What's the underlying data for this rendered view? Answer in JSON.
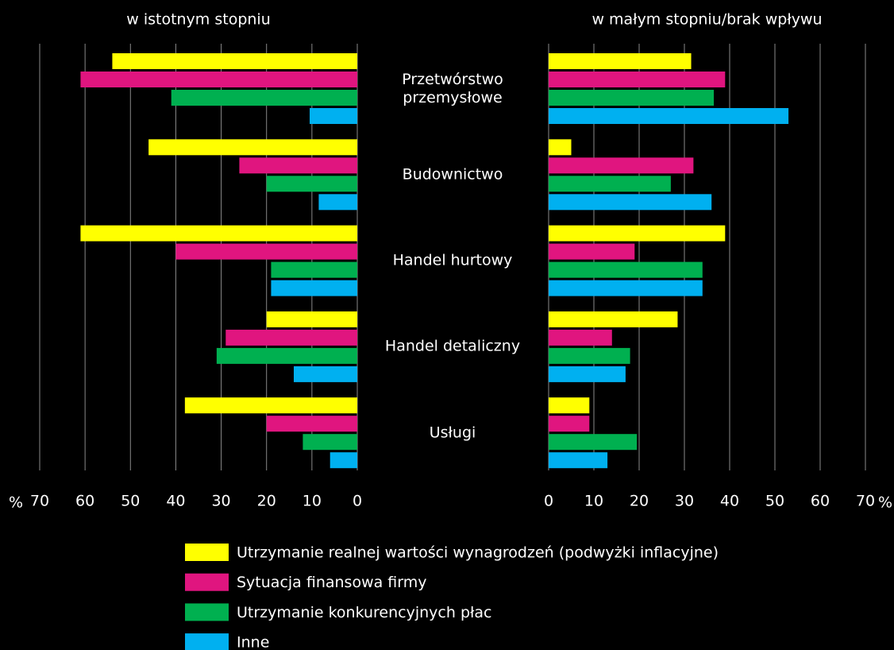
{
  "chart_data": {
    "type": "bar",
    "categories": [
      "Przetwórstwo przemysłowe",
      "Budownictwo",
      "Handel hurtowy",
      "Handel detaliczny",
      "Usługi"
    ],
    "series": [
      {
        "name": "Utrzymanie realnej wartości wynagrodzeń (podwyżki inflacyjne)",
        "color": "#ffff00"
      },
      {
        "name": "Sytuacja finansowa firmy",
        "color": "#e0157f"
      },
      {
        "name": "Utrzymanie konkurencyjnych płac",
        "color": "#00b050"
      },
      {
        "name": "Inne",
        "color": "#00b0f0"
      }
    ],
    "grid": true,
    "panels": [
      {
        "title": "w istotnym stopniu",
        "unit": "%",
        "reversed": true,
        "xlim": [
          0,
          70
        ],
        "xticks": [
          0,
          10,
          20,
          30,
          40,
          50,
          60,
          70
        ],
        "values": [
          [
            54,
            46,
            61,
            20,
            38
          ],
          [
            61,
            26,
            40,
            29,
            20
          ],
          [
            41,
            20,
            19,
            31,
            12
          ],
          [
            10.5,
            8.5,
            19,
            14,
            6
          ]
        ]
      },
      {
        "title": "w małym stopniu/brak wpływu",
        "unit": "%",
        "reversed": false,
        "xlim": [
          0,
          70
        ],
        "xticks": [
          0,
          10,
          20,
          30,
          40,
          50,
          60,
          70
        ],
        "values": [
          [
            31.5,
            5,
            39,
            28.5,
            9
          ],
          [
            39,
            32,
            19,
            14,
            9
          ],
          [
            36.5,
            27,
            34,
            18,
            19.5
          ],
          [
            53,
            36,
            34,
            17,
            13
          ]
        ]
      }
    ]
  }
}
